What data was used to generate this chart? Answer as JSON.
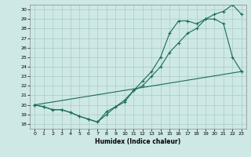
{
  "xlabel": "Humidex (Indice chaleur)",
  "background_color": "#cde8e5",
  "grid_color": "#b0d0cc",
  "line_color": "#1a6b5a",
  "xlim": [
    -0.5,
    23.5
  ],
  "ylim": [
    17.5,
    30.5
  ],
  "yticks": [
    18,
    19,
    20,
    21,
    22,
    23,
    24,
    25,
    26,
    27,
    28,
    29,
    30
  ],
  "xticks": [
    0,
    1,
    2,
    3,
    4,
    5,
    6,
    7,
    8,
    9,
    10,
    11,
    12,
    13,
    14,
    15,
    16,
    17,
    18,
    19,
    20,
    21,
    22,
    23
  ],
  "line1_x": [
    0,
    1,
    2,
    3,
    4,
    5,
    6,
    7,
    8,
    9,
    10,
    11,
    12,
    13,
    14,
    15,
    16,
    17,
    18,
    19,
    20,
    21,
    22,
    23
  ],
  "line1_y": [
    20.0,
    19.8,
    19.5,
    19.5,
    19.2,
    18.8,
    18.5,
    18.2,
    19.3,
    19.8,
    20.5,
    21.5,
    22.0,
    23.0,
    24.0,
    25.5,
    26.5,
    27.5,
    28.0,
    29.0,
    29.0,
    28.5,
    25.0,
    23.5
  ],
  "line2_x": [
    0,
    1,
    2,
    3,
    4,
    5,
    6,
    7,
    8,
    9,
    10,
    11,
    12,
    13,
    14,
    15,
    16,
    17,
    18,
    19,
    20,
    21,
    22,
    23
  ],
  "line2_y": [
    20.0,
    19.8,
    19.5,
    19.5,
    19.2,
    18.8,
    18.5,
    18.2,
    19.0,
    19.8,
    20.3,
    21.5,
    22.5,
    23.5,
    25.0,
    27.5,
    28.8,
    28.8,
    28.5,
    29.0,
    29.5,
    29.8,
    30.5,
    29.5
  ],
  "line3_x": [
    0,
    23
  ],
  "line3_y": [
    20.0,
    23.5
  ]
}
